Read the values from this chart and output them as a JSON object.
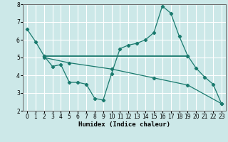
{
  "title": "",
  "xlabel": "Humidex (Indice chaleur)",
  "background_color": "#cce8e8",
  "grid_color": "#ffffff",
  "line_color": "#1a7a6e",
  "xlim": [
    -0.5,
    23.5
  ],
  "ylim": [
    2,
    8
  ],
  "yticks": [
    2,
    3,
    4,
    5,
    6,
    7,
    8
  ],
  "xticks": [
    0,
    1,
    2,
    3,
    4,
    5,
    6,
    7,
    8,
    9,
    10,
    11,
    12,
    13,
    14,
    15,
    16,
    17,
    18,
    19,
    20,
    21,
    22,
    23
  ],
  "line1_x": [
    0,
    1,
    2,
    3,
    4,
    5,
    6,
    7,
    8,
    9,
    10,
    11,
    12,
    13,
    14,
    15,
    16,
    17,
    18,
    19,
    20,
    21,
    22,
    23
  ],
  "line1_y": [
    6.6,
    5.9,
    5.1,
    4.5,
    4.6,
    3.6,
    3.6,
    3.5,
    2.7,
    2.6,
    4.1,
    5.5,
    5.7,
    5.8,
    6.0,
    6.4,
    7.9,
    7.5,
    6.2,
    5.1,
    4.4,
    3.9,
    3.5,
    2.4
  ],
  "line2_x": [
    2,
    19
  ],
  "line2_y": [
    5.1,
    5.1
  ],
  "line3_x": [
    2,
    5,
    10,
    15,
    19,
    23
  ],
  "line3_y": [
    5.0,
    4.7,
    4.35,
    3.85,
    3.45,
    2.4
  ]
}
